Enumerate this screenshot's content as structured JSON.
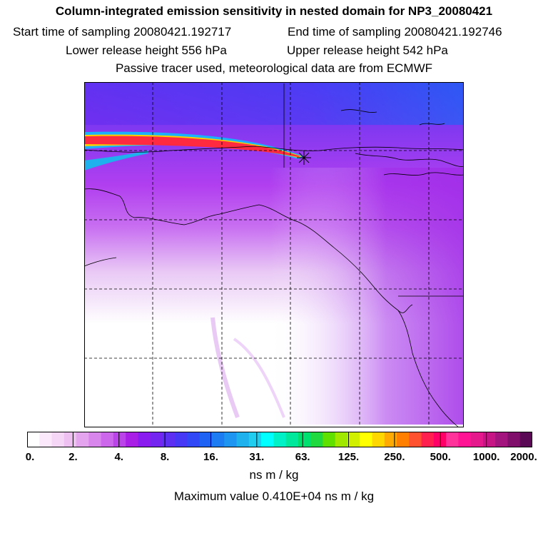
{
  "header": {
    "title": "Column-integrated emission sensitivity in nested domain for NP3_20080421",
    "start_time": "Start time of sampling 20080421.192717",
    "end_time": "End time of sampling 20080421.192746",
    "lower_height": "Lower release height  556 hPa",
    "upper_height": "Upper release height  542 hPa",
    "tracer_note": "Passive tracer used, meteorological data are from ECMWF"
  },
  "colorbar": {
    "colors": [
      "#ffffff",
      "#fbe9fb",
      "#f5d6f6",
      "#eec0f1",
      "#e4a4ee",
      "#d986ec",
      "#cc66ea",
      "#bb44e8",
      "#a91fe6",
      "#8a1cf0",
      "#7426f0",
      "#5c2ff3",
      "#4638f5",
      "#3048f5",
      "#1f63f5",
      "#1e7cf3",
      "#1e95f0",
      "#1fb0ee",
      "#20cdee",
      "#00ffff",
      "#00f0c8",
      "#00e89c",
      "#00e070",
      "#20d840",
      "#60e000",
      "#a0e800",
      "#d0f000",
      "#ffff00",
      "#ffd700",
      "#ffaa00",
      "#ff7f00",
      "#ff5030",
      "#ff2050",
      "#ff0066",
      "#ff3399",
      "#ff1493",
      "#e6198c",
      "#c71585",
      "#a3147e",
      "#7f0f6b",
      "#5a0a55"
    ],
    "tick_labels": [
      "0.",
      "2.",
      "4.",
      "8.",
      "16.",
      "31.",
      "63.",
      "125.",
      "250.",
      "500.",
      "1000.",
      "2000."
    ],
    "units": "ns m / kg"
  },
  "max_value": "Maximum value  0.410E+04 ns m / kg",
  "map": {
    "marker": "release-point-star",
    "gridlines": "dashed"
  }
}
